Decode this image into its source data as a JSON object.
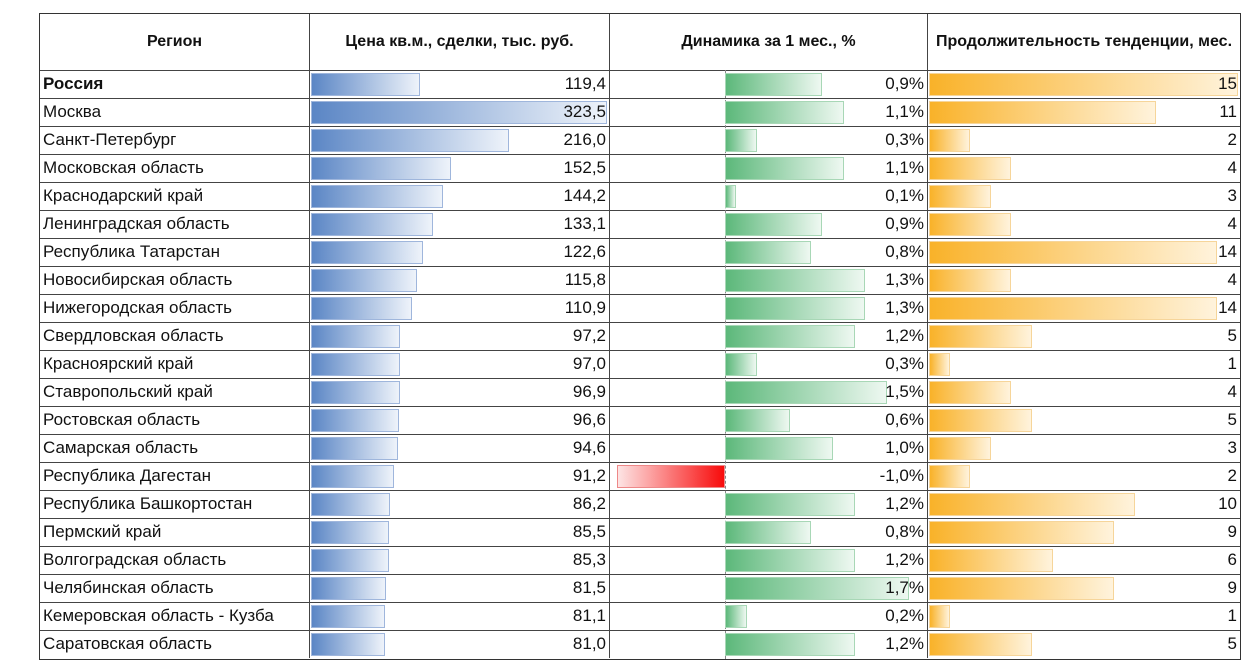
{
  "table": {
    "headers": {
      "region": "Регион",
      "price": "Цена кв.м., сделки, тыс. руб.",
      "dynamics": "Динамика за 1 мес., %",
      "duration": "Продолжительность тенденции, мес."
    },
    "rows": [
      {
        "region": "Россия",
        "price": "119,4",
        "dynamics": "0,9%",
        "duration": "15",
        "bold": true
      },
      {
        "region": "Москва",
        "price": "323,5",
        "dynamics": "1,1%",
        "duration": "11"
      },
      {
        "region": "Санкт-Петербург",
        "price": "216,0",
        "dynamics": "0,3%",
        "duration": "2"
      },
      {
        "region": "Московская область",
        "price": "152,5",
        "dynamics": "1,1%",
        "duration": "4"
      },
      {
        "region": "Краснодарский край",
        "price": "144,2",
        "dynamics": "0,1%",
        "duration": "3"
      },
      {
        "region": "Ленинградская область",
        "price": "133,1",
        "dynamics": "0,9%",
        "duration": "4"
      },
      {
        "region": "Республика Татарстан",
        "price": "122,6",
        "dynamics": "0,8%",
        "duration": "14"
      },
      {
        "region": "Новосибирская область",
        "price": "115,8",
        "dynamics": "1,3%",
        "duration": "4"
      },
      {
        "region": "Нижегородская область",
        "price": "110,9",
        "dynamics": "1,3%",
        "duration": "14"
      },
      {
        "region": "Свердловская область",
        "price": "97,2",
        "dynamics": "1,2%",
        "duration": "5"
      },
      {
        "region": "Красноярский край",
        "price": "97,0",
        "dynamics": "0,3%",
        "duration": "1"
      },
      {
        "region": "Ставропольский край",
        "price": "96,9",
        "dynamics": "1,5%",
        "duration": "4"
      },
      {
        "region": "Ростовская область",
        "price": "96,6",
        "dynamics": "0,6%",
        "duration": "5"
      },
      {
        "region": "Самарская область",
        "price": "94,6",
        "dynamics": "1,0%",
        "duration": "3"
      },
      {
        "region": "Республика Дагестан",
        "price": "91,2",
        "dynamics": "-1,0%",
        "duration": "2"
      },
      {
        "region": "Республика Башкортостан",
        "price": "86,2",
        "dynamics": "1,2%",
        "duration": "10"
      },
      {
        "region": "Пермский край",
        "price": "85,5",
        "dynamics": "0,8%",
        "duration": "9"
      },
      {
        "region": "Волгоградская область",
        "price": "85,3",
        "dynamics": "1,2%",
        "duration": "6"
      },
      {
        "region": "Челябинская область",
        "price": "81,5",
        "dynamics": "1,7%",
        "duration": "9"
      },
      {
        "region": "Кемеровская область - Кузба",
        "price": "81,1",
        "dynamics": "0,2%",
        "duration": "1"
      },
      {
        "region": "Саратовская область",
        "price": "81,0",
        "dynamics": "1,2%",
        "duration": "5"
      }
    ]
  },
  "colors": {
    "price_bar": "#5b86c5",
    "dynamics_positive_bar": "#5cb87a",
    "dynamics_negative_bar": "#f80b0b",
    "duration_bar": "#f9b229"
  },
  "chart_data": {
    "type": "table",
    "title": "",
    "columns": [
      "Регион",
      "Цена кв.м., сделки, тыс. руб.",
      "Динамика за 1 мес., %",
      "Продолжительность тенденции, мес."
    ],
    "categories": [
      "Россия",
      "Москва",
      "Санкт-Петербург",
      "Московская область",
      "Краснодарский край",
      "Ленинградская область",
      "Республика Татарстан",
      "Новосибирская область",
      "Нижегородская область",
      "Свердловская область",
      "Красноярский край",
      "Ставропольский край",
      "Ростовская область",
      "Самарская область",
      "Республика Дагестан",
      "Республика Башкортостан",
      "Пермский край",
      "Волгоградская область",
      "Челябинская область",
      "Кемеровская область - Кузба",
      "Саратовская область"
    ],
    "series": [
      {
        "name": "Цена кв.м., сделки, тыс. руб.",
        "bar_style": "data-bar blue gradient",
        "values": [
          119.4,
          323.5,
          216.0,
          152.5,
          144.2,
          133.1,
          122.6,
          115.8,
          110.9,
          97.2,
          97.0,
          96.9,
          96.6,
          94.6,
          91.2,
          86.2,
          85.5,
          85.3,
          81.5,
          81.1,
          81.0
        ]
      },
      {
        "name": "Динамика за 1 мес., %",
        "bar_style": "data-bar green positive / red negative, axis in cell",
        "values": [
          0.9,
          1.1,
          0.3,
          1.1,
          0.1,
          0.9,
          0.8,
          1.3,
          1.3,
          1.2,
          0.3,
          1.5,
          0.6,
          1.0,
          -1.0,
          1.2,
          0.8,
          1.2,
          1.7,
          0.2,
          1.2
        ]
      },
      {
        "name": "Продолжительность тенденции, мес.",
        "bar_style": "data-bar orange gradient",
        "values": [
          15,
          11,
          2,
          4,
          3,
          4,
          14,
          4,
          14,
          5,
          1,
          4,
          5,
          3,
          2,
          10,
          9,
          6,
          9,
          1,
          5
        ]
      }
    ]
  }
}
